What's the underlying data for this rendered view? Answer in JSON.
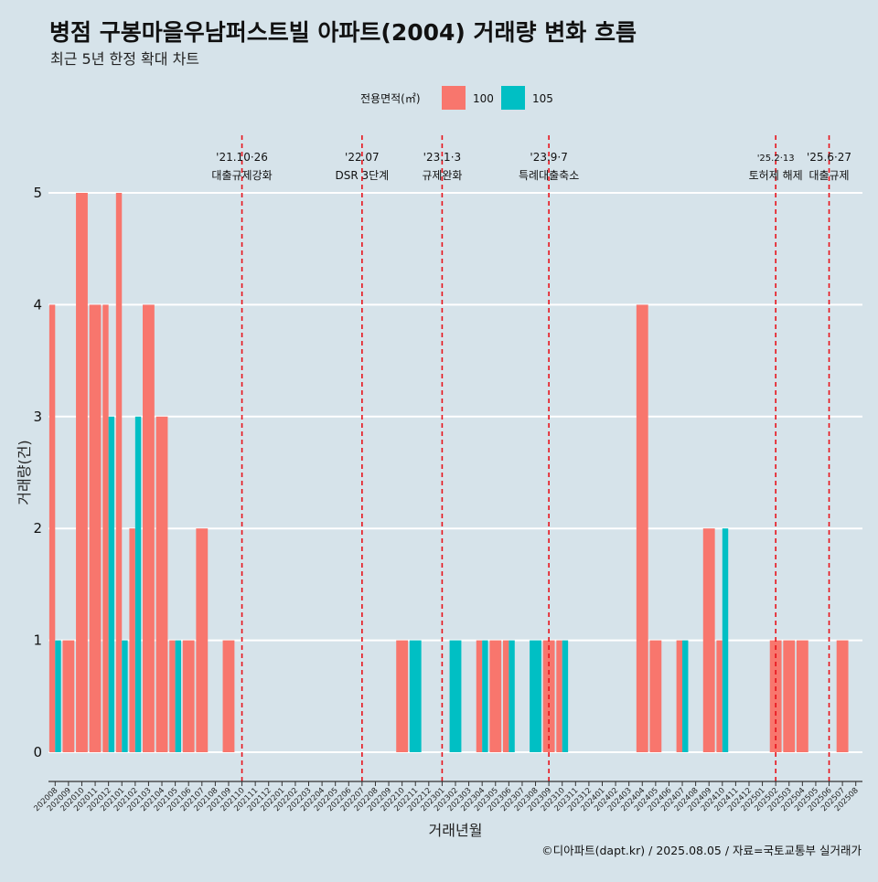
{
  "chart_data": {
    "type": "bar",
    "title": "병점 구봉마을우남퍼스트빌 아파트(2004) 거래량 변화 흐름",
    "subtitle": "최근 5년 한정 확대 차트",
    "xlabel": "거래년월",
    "ylabel": "거래량(건)",
    "ylim": [
      0,
      5
    ],
    "yticks": [
      0,
      1,
      2,
      3,
      4,
      5
    ],
    "legend": {
      "title": "전용면적(㎡)",
      "position": "top",
      "entries": [
        "100",
        "105"
      ]
    },
    "colors": {
      "100": "#f8766d",
      "105": "#00bfc4",
      "vline": "#e8131b",
      "grid": "#ffffff",
      "background": "#d6e3ea"
    },
    "categories": [
      "202008",
      "202009",
      "202010",
      "202011",
      "202012",
      "202101",
      "202102",
      "202103",
      "202104",
      "202105",
      "202106",
      "202107",
      "202108",
      "202109",
      "202110",
      "202111",
      "202112",
      "202201",
      "202202",
      "202203",
      "202204",
      "202205",
      "202206",
      "202207",
      "202208",
      "202209",
      "202210",
      "202211",
      "202212",
      "202301",
      "202302",
      "202303",
      "202304",
      "202305",
      "202306",
      "202307",
      "202308",
      "202309",
      "202310",
      "202311",
      "202312",
      "202401",
      "202402",
      "202403",
      "202404",
      "202405",
      "202406",
      "202407",
      "202408",
      "202409",
      "202410",
      "202411",
      "202412",
      "202501",
      "202502",
      "202503",
      "202504",
      "202505",
      "202506",
      "202507",
      "202508"
    ],
    "series": [
      {
        "name": "100",
        "values": [
          4,
          1,
          5,
          4,
          4,
          5,
          2,
          4,
          3,
          1,
          1,
          2,
          0,
          1,
          0,
          0,
          0,
          0,
          0,
          0,
          0,
          0,
          0,
          0,
          0,
          0,
          1,
          0,
          0,
          0,
          0,
          0,
          1,
          1,
          1,
          0,
          0,
          1,
          1,
          0,
          0,
          0,
          0,
          0,
          4,
          1,
          0,
          1,
          0,
          2,
          1,
          0,
          0,
          0,
          1,
          1,
          1,
          0,
          0,
          1,
          0
        ]
      },
      {
        "name": "105",
        "values": [
          1,
          0,
          0,
          0,
          3,
          1,
          3,
          0,
          0,
          1,
          0,
          0,
          0,
          0,
          0,
          0,
          0,
          0,
          0,
          0,
          0,
          0,
          0,
          0,
          0,
          0,
          0,
          1,
          0,
          0,
          1,
          0,
          1,
          0,
          1,
          0,
          1,
          0,
          1,
          0,
          0,
          0,
          0,
          0,
          0,
          0,
          0,
          1,
          0,
          0,
          2,
          0,
          0,
          0,
          0,
          0,
          0,
          0,
          0,
          0,
          0
        ]
      }
    ],
    "annotations": [
      {
        "at": "202110",
        "lines": [
          "'21.10·26",
          "대출규제강화"
        ],
        "small": false
      },
      {
        "at": "202207",
        "lines": [
          "'22.07",
          "DSR 3단계"
        ],
        "small": false
      },
      {
        "at": "202301",
        "lines": [
          "'23.1·3",
          "규제완화"
        ],
        "small": false
      },
      {
        "at": "202309",
        "lines": [
          "'23.9·7",
          "특례대출축소"
        ],
        "small": false
      },
      {
        "at": "202502",
        "lines": [
          "'25.2·13",
          "토허제 해제"
        ],
        "small": true
      },
      {
        "at": "202506",
        "lines": [
          "'25.6·27",
          "대출규제"
        ],
        "small": false
      }
    ]
  },
  "caption": "©디아파트(dapt.kr) / 2025.08.05 / 자료=국토교통부 실거래가"
}
